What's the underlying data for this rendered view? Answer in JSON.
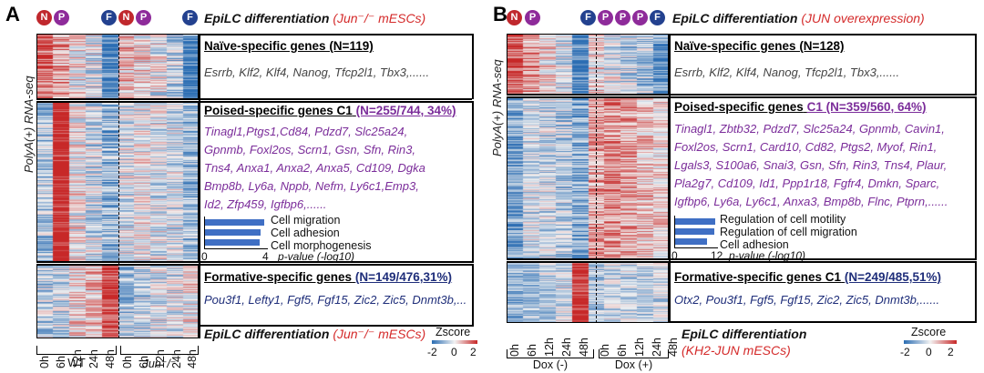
{
  "panelA": {
    "letter": "A",
    "badges_left": [
      "N",
      "P"
    ],
    "badges_right": [
      "F",
      "N",
      "P"
    ],
    "badge_far_right": "F",
    "title_main": "EpiLC differentiation",
    "title_sub": "(Jun⁻/⁻ mESCs)",
    "side_label": "PolyA(+) RNA-seq",
    "blocks": {
      "naive": {
        "title": "Naïve-specific genes (N=119)",
        "genes": "Esrrb, Klf2, Klf4, Nanog, Tfcp2l1, Tbx3,......"
      },
      "poised": {
        "title": "Poised-specific genes C1",
        "count": "(N=255/744, 34%)",
        "genes": "Tinagl1,Ptgs1,Cd84, Pdzd7, Slc25a24,\nGpnmb, Foxl2os, Scrn1, Gsn, Sfn, Rin3,\nTns4, Anxa1, Anxa2, Anxa5, Cd109, Dgka\nBmp8b, Ly6a, Nppb, Nefm, Ly6c1,Emp3,\nId2, Zfp459, Igfbp6,......"
      },
      "formative": {
        "title": "Formative-specific genes",
        "count": "(N=149/476,31%)",
        "genes": "Pou3f1, Lefty1, Fgf5, Fgf15, Zic2, Zic5, Dnmt3b,..."
      }
    },
    "go_terms": [
      "Cell migration",
      "Cell adhesion",
      "Cell morphogenesis"
    ],
    "go_values": [
      3.8,
      3.6,
      3.5
    ],
    "go_axis": {
      "min": "0",
      "max": "4",
      "title": "p-value (-log10)"
    },
    "bottom_main": "EpiLC differentiation",
    "bottom_sub": "(Jun⁻/⁻ mESCs)",
    "timepoints": [
      "0h",
      "6h",
      "12h",
      "24h",
      "48h"
    ],
    "groups": [
      "WT",
      "Jun⁻/⁻"
    ],
    "zscore": {
      "title": "Zscore",
      "ticks": [
        "-2",
        "0",
        "2"
      ]
    }
  },
  "panelB": {
    "letter": "B",
    "badges": [
      "N",
      "P",
      "F",
      "P",
      "P",
      "P",
      "P",
      "F"
    ],
    "title_main": "EpiLC differentiation",
    "title_sub": "(JUN overexpression)",
    "side_label": "PolyA(+) RNA-seq",
    "blocks": {
      "naive": {
        "title": "Naïve-specific genes (N=128)",
        "genes": "Esrrb, Klf2, Klf4, Nanog, Tfcp2l1, Tbx3,......"
      },
      "poised": {
        "title": "Poised-specific genes",
        "count": "C1 (N=359/560, 64%)",
        "genes": "Tinagl1, Zbtb32, Pdzd7, Slc25a24, Gpnmb, Cavin1,\nFoxl2os, Scrn1, Card10, Cd82, Ptgs2, Myof, Rin1,\nLgals3, S100a6, Snai3, Gsn, Sfn, Rin3, Tns4, Plaur,\nPla2g7, Cd109, Id1, Ppp1r18, Fgfr4, Dmkn, Sparc,\nIgfbp6, Ly6a, Ly6c1, Anxa3, Bmp8b, Flnc, Ptprn,......"
      },
      "formative": {
        "title": "Formative-specific genes C1",
        "count": "(N=249/485,51%)",
        "genes": "Otx2, Pou3f1, Fgf5, Fgf15, Zic2, Zic5, Dnmt3b,......"
      }
    },
    "go_terms": [
      "Regulation of cell motility",
      "Regulation of cell migration",
      "Cell adhesion"
    ],
    "go_values": [
      11.5,
      11.3,
      9.0
    ],
    "go_axis": {
      "min": "0",
      "max": "12",
      "title": "p-value (-log10)"
    },
    "bottom_main": "EpiLC differentiation",
    "bottom_sub": "(KH2-JUN mESCs)",
    "timepoints": [
      "0h",
      "6h",
      "12h",
      "24h",
      "48h"
    ],
    "groups": [
      "Dox (-)",
      "Dox (+)"
    ],
    "zscore": {
      "title": "Zscore",
      "ticks": [
        "-2",
        "0",
        "2"
      ]
    }
  },
  "colors": {
    "high": "#c72828",
    "mid": "#f2f2f2",
    "low": "#2b6db3",
    "naive": "#c0282d",
    "poised": "#8e2b9a",
    "formative": "#23418f"
  }
}
